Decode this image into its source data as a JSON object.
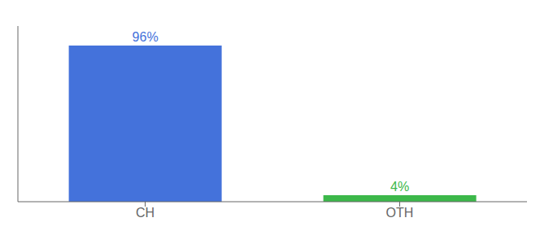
{
  "chart_data": {
    "type": "bar",
    "categories": [
      "CH",
      "OTH"
    ],
    "values": [
      96,
      4
    ],
    "value_labels": [
      "96%",
      "4%"
    ],
    "data_labels": true,
    "colors": [
      "#4472db",
      "#3cb84a"
    ],
    "ylim": [
      0,
      108
    ],
    "grid": false,
    "tick_labels": "x"
  }
}
